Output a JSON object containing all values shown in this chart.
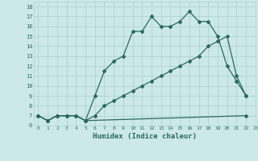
{
  "line1_x": [
    0,
    1,
    2,
    3,
    4,
    5,
    22
  ],
  "line1_y": [
    7,
    6.5,
    7,
    7,
    7,
    6.5,
    7
  ],
  "line2_x": [
    0,
    1,
    2,
    3,
    4,
    5,
    6,
    7,
    8,
    9,
    10,
    11,
    12,
    13,
    14,
    15,
    16,
    17,
    18,
    19,
    20,
    21,
    22
  ],
  "line2_y": [
    7,
    6.5,
    7,
    7,
    7,
    6.5,
    9,
    11.5,
    12.5,
    13,
    15.5,
    15.5,
    17,
    16,
    16,
    16.5,
    17.5,
    16.5,
    16.5,
    15,
    12,
    10.5,
    9
  ],
  "line3_x": [
    0,
    1,
    2,
    3,
    4,
    5,
    6,
    7,
    8,
    9,
    10,
    11,
    12,
    13,
    14,
    15,
    16,
    17,
    18,
    19,
    20,
    21,
    22
  ],
  "line3_y": [
    7,
    6.5,
    7,
    7,
    7,
    6.5,
    7,
    8,
    8.5,
    9,
    9.5,
    10,
    10.5,
    11,
    11.5,
    12,
    12.5,
    13,
    14,
    14.5,
    15,
    11,
    9
  ],
  "color": "#2a6b5a",
  "bg_color": "#cce8e8",
  "grid_color": "#afd4d4",
  "xlabel": "Humidex (Indice chaleur)",
  "xlim": [
    -0.5,
    23
  ],
  "ylim": [
    6,
    18.5
  ],
  "yticks": [
    6,
    7,
    8,
    9,
    10,
    11,
    12,
    13,
    14,
    15,
    16,
    17,
    18
  ],
  "xticks": [
    0,
    1,
    2,
    3,
    4,
    5,
    6,
    7,
    8,
    9,
    10,
    11,
    12,
    13,
    14,
    15,
    16,
    17,
    18,
    19,
    20,
    21,
    22,
    23
  ]
}
